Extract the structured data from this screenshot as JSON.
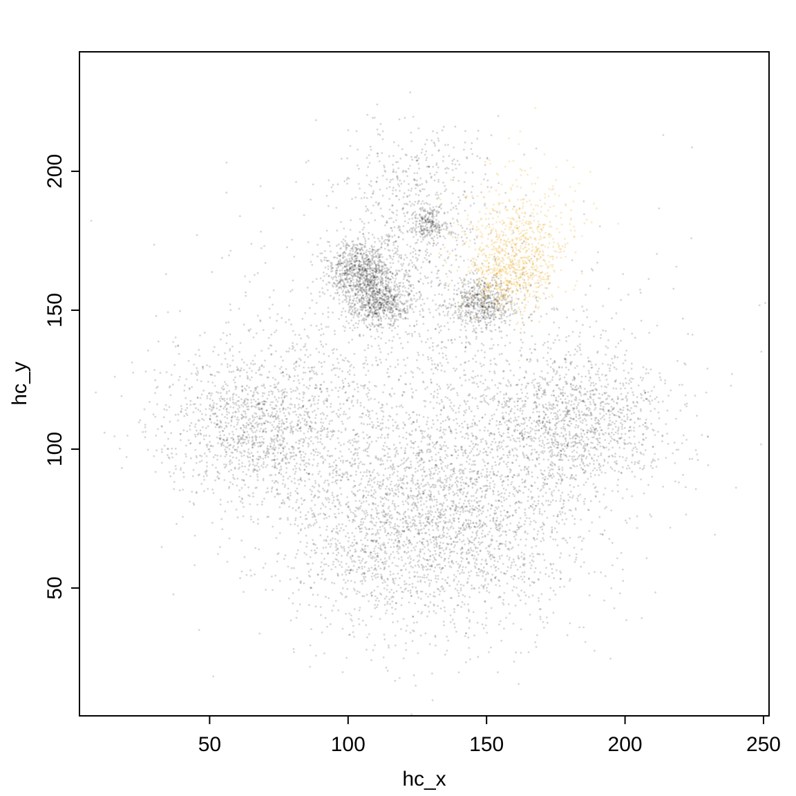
{
  "chart_data": {
    "type": "scatter",
    "title": "",
    "xlabel": "hc_x",
    "ylabel": "hc_y",
    "xlim": [
      3,
      252
    ],
    "ylim": [
      4,
      243
    ],
    "x_ticks": [
      50,
      100,
      150,
      200,
      250
    ],
    "y_ticks": [
      50,
      100,
      150,
      200
    ],
    "grid": false,
    "legend": "none",
    "colors": {
      "main": "#000000",
      "highlight": "#E69F00"
    },
    "density_regions": [
      {
        "series": "main",
        "cx": 125,
        "cy": 125,
        "sx": 40,
        "sy": 30,
        "weight": 10
      },
      {
        "series": "main",
        "cx": 68,
        "cy": 108,
        "sx": 17,
        "sy": 13,
        "weight": 9
      },
      {
        "series": "main",
        "cx": 182,
        "cy": 110,
        "sx": 17,
        "sy": 13,
        "weight": 9
      },
      {
        "series": "main",
        "cx": 128,
        "cy": 82,
        "sx": 24,
        "sy": 18,
        "weight": 10
      },
      {
        "series": "main",
        "cx": 110,
        "cy": 65,
        "sx": 22,
        "sy": 18,
        "weight": 5
      },
      {
        "series": "main",
        "cx": 148,
        "cy": 65,
        "sx": 22,
        "sy": 18,
        "weight": 5
      },
      {
        "series": "main",
        "cx": 104,
        "cy": 165,
        "sx": 6,
        "sy": 4.5,
        "weight": 5
      },
      {
        "series": "main",
        "cx": 111,
        "cy": 153,
        "sx": 6,
        "sy": 4.5,
        "weight": 5
      },
      {
        "series": "main",
        "cx": 148,
        "cy": 153,
        "sx": 6,
        "sy": 4.5,
        "weight": 4
      },
      {
        "series": "main",
        "cx": 129,
        "cy": 181,
        "sx": 3,
        "sy": 3,
        "weight": 1.4
      },
      {
        "series": "main",
        "cx": 122,
        "cy": 175,
        "sx": 12,
        "sy": 14,
        "weight": 3
      },
      {
        "series": "main",
        "cx": 125,
        "cy": 200,
        "sx": 15,
        "sy": 9,
        "weight": 1.5
      },
      {
        "series": "highlight",
        "cx": 158,
        "cy": 165,
        "sx": 8,
        "sy": 8,
        "weight": 4
      },
      {
        "series": "highlight",
        "cx": 163,
        "cy": 178,
        "sx": 11,
        "sy": 12,
        "weight": 3
      }
    ]
  }
}
